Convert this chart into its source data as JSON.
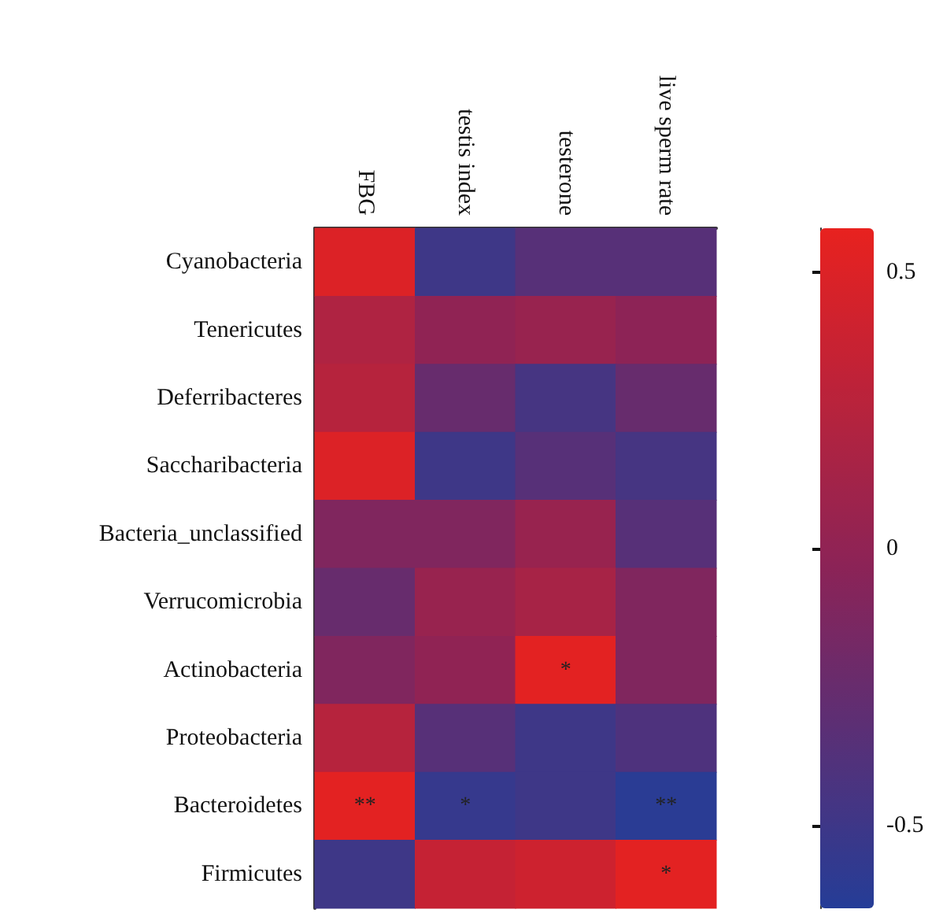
{
  "chart_data": {
    "type": "heatmap",
    "categories": [
      "FBG",
      "testis index",
      "testerone",
      "live sperm rate"
    ],
    "y_categories": [
      "Cyanobacteria",
      "Tenericutes",
      "Deferribacteres",
      "Saccharibacteria",
      "Bacteria_unclassified",
      "Verrucomicrobia",
      "Actinobacteria",
      "Proteobacteria",
      "Bacteroidetes",
      "Firmicutes"
    ],
    "cells": [
      [
        0.5,
        -0.5,
        -0.35,
        -0.35
      ],
      [
        0.2,
        0.0,
        0.05,
        -0.02
      ],
      [
        0.25,
        -0.25,
        -0.45,
        -0.25
      ],
      [
        0.5,
        -0.5,
        -0.35,
        -0.45
      ],
      [
        -0.1,
        -0.1,
        0.05,
        -0.35
      ],
      [
        -0.25,
        0.05,
        0.15,
        -0.1
      ],
      [
        -0.1,
        0.0,
        0.55,
        -0.1
      ],
      [
        0.25,
        -0.35,
        -0.5,
        -0.4
      ],
      [
        0.55,
        -0.55,
        -0.5,
        -0.62
      ],
      [
        -0.5,
        0.35,
        0.4,
        0.55
      ]
    ],
    "cell_labels": [
      [
        null,
        null,
        null,
        null
      ],
      [
        null,
        null,
        null,
        null
      ],
      [
        null,
        null,
        null,
        null
      ],
      [
        null,
        null,
        null,
        null
      ],
      [
        null,
        null,
        null,
        null
      ],
      [
        null,
        null,
        null,
        null
      ],
      [
        null,
        null,
        "*",
        null
      ],
      [
        null,
        null,
        null,
        null
      ],
      [
        "**",
        "*",
        null,
        "**"
      ],
      [
        null,
        null,
        null,
        "*"
      ]
    ],
    "clim": [
      -0.65,
      0.58
    ],
    "cticks": [
      0.5,
      0,
      -0.5
    ],
    "colors": [
      "#253d97",
      "#8b2357",
      "#e8221f"
    ]
  }
}
